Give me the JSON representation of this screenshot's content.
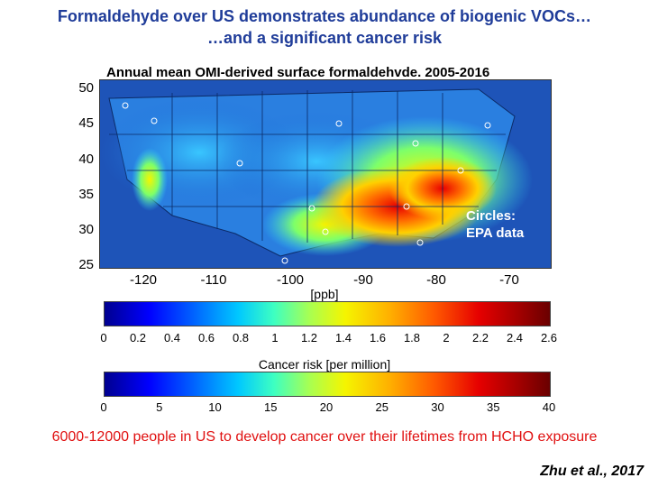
{
  "header": {
    "title_line1": "Formaldehyde over US demonstrates abundance of biogenic VOCs…",
    "title_line2": "…and a significant cancer risk"
  },
  "map": {
    "title": "Annual mean OMI-derived surface formaldehvde. 2005-2016",
    "lat_labels": [
      "50",
      "45",
      "40",
      "35",
      "30",
      "25"
    ],
    "lon_labels": [
      "-120",
      "-110",
      "-100",
      "-90",
      "-80",
      "-70"
    ],
    "circles_note_line1": "Circles:",
    "circles_note_line2": "EPA data"
  },
  "colorbar_hcho": {
    "label": "[ppb]",
    "ticks": [
      "0",
      "0.2",
      "0.4",
      "0.6",
      "0.8",
      "1",
      "1.2",
      "1.4",
      "1.6",
      "1.8",
      "2",
      "2.2",
      "2.4",
      "2.6"
    ]
  },
  "colorbar_risk": {
    "label": "Cancer risk [per million]",
    "ticks": [
      "0",
      "5",
      "10",
      "15",
      "20",
      "25",
      "30",
      "35",
      "40"
    ]
  },
  "conclusion": "6000-12000 people in US to develop cancer over their lifetimes from HCHO exposure",
  "citation": "Zhu et al., 2017",
  "colors": {
    "title": "#1f3c99",
    "conclusion": "#e01010",
    "map_background": "#1e54b8"
  }
}
